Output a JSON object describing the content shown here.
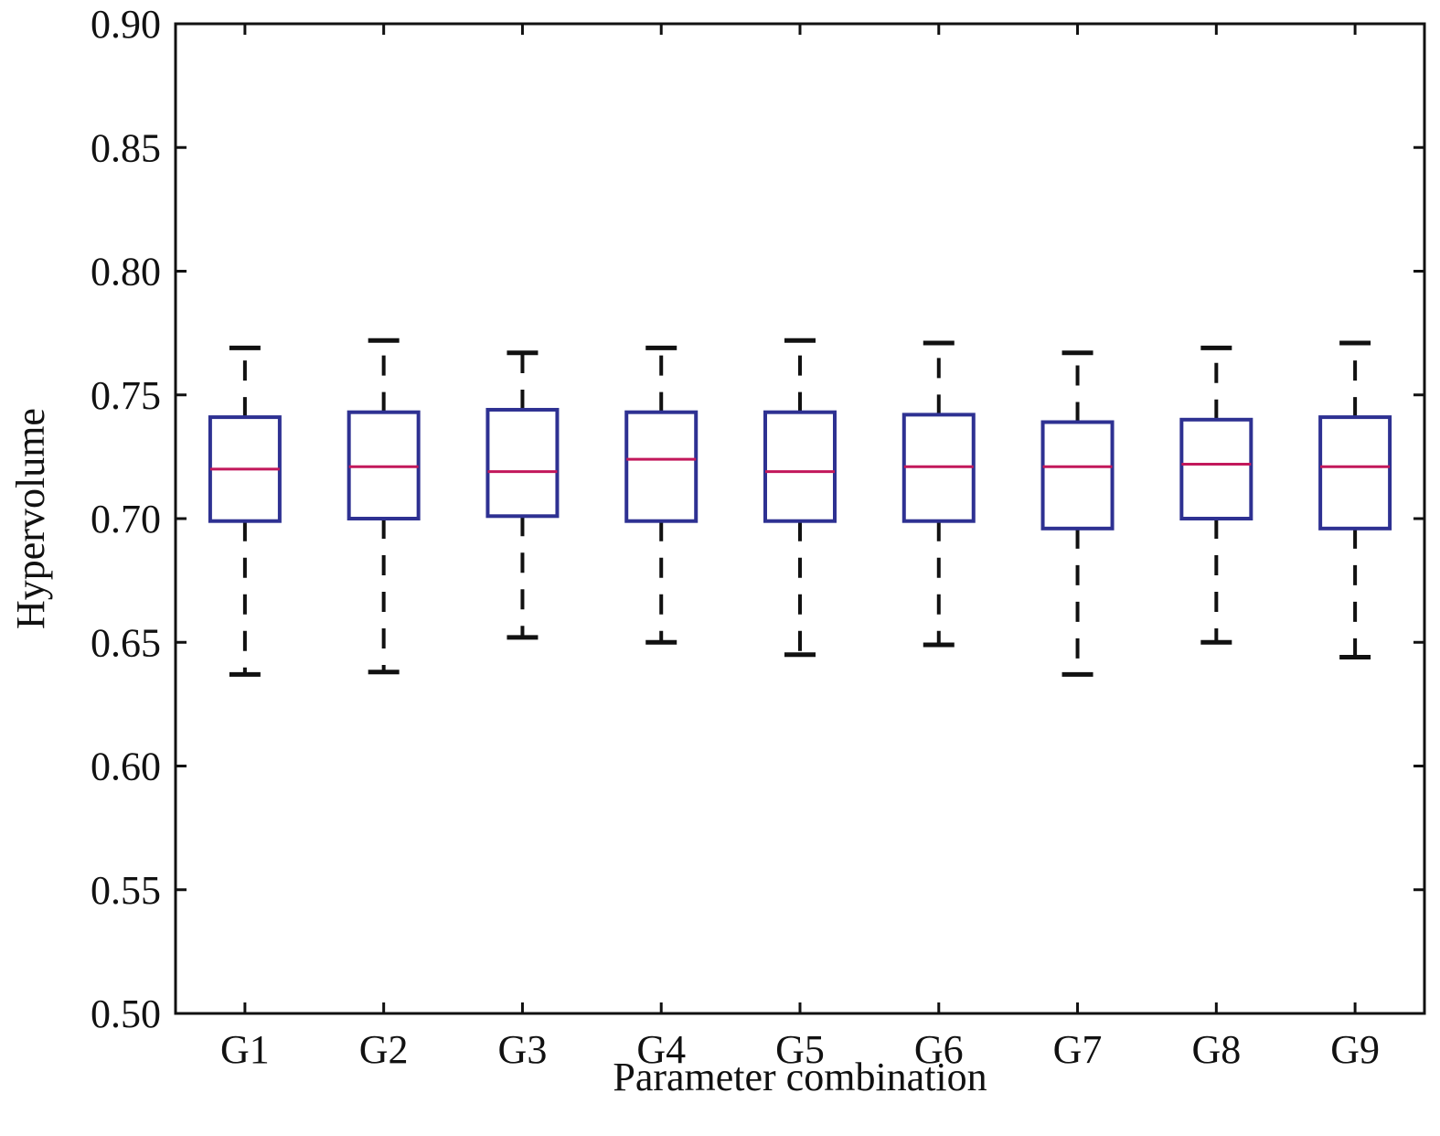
{
  "chart_data": {
    "type": "boxplot",
    "xlabel": "Parameter combination",
    "ylabel": "Hypervolume",
    "ylim": [
      0.5,
      0.9
    ],
    "yticks": [
      "0.50",
      "0.55",
      "0.60",
      "0.65",
      "0.70",
      "0.75",
      "0.80",
      "0.85",
      "0.90"
    ],
    "categories": [
      "G1",
      "G2",
      "G3",
      "G4",
      "G5",
      "G6",
      "G7",
      "G8",
      "G9"
    ],
    "boxes": [
      {
        "name": "G1",
        "whisker_low": 0.637,
        "q1": 0.699,
        "median": 0.72,
        "q3": 0.741,
        "whisker_high": 0.769
      },
      {
        "name": "G2",
        "whisker_low": 0.638,
        "q1": 0.7,
        "median": 0.721,
        "q3": 0.743,
        "whisker_high": 0.772
      },
      {
        "name": "G3",
        "whisker_low": 0.652,
        "q1": 0.701,
        "median": 0.719,
        "q3": 0.744,
        "whisker_high": 0.767
      },
      {
        "name": "G4",
        "whisker_low": 0.65,
        "q1": 0.699,
        "median": 0.724,
        "q3": 0.743,
        "whisker_high": 0.769
      },
      {
        "name": "G5",
        "whisker_low": 0.645,
        "q1": 0.699,
        "median": 0.719,
        "q3": 0.743,
        "whisker_high": 0.772
      },
      {
        "name": "G6",
        "whisker_low": 0.649,
        "q1": 0.699,
        "median": 0.721,
        "q3": 0.742,
        "whisker_high": 0.771
      },
      {
        "name": "G7",
        "whisker_low": 0.637,
        "q1": 0.696,
        "median": 0.721,
        "q3": 0.739,
        "whisker_high": 0.767
      },
      {
        "name": "G8",
        "whisker_low": 0.65,
        "q1": 0.7,
        "median": 0.722,
        "q3": 0.74,
        "whisker_high": 0.769
      },
      {
        "name": "G9",
        "whisker_low": 0.644,
        "q1": 0.696,
        "median": 0.721,
        "q3": 0.741,
        "whisker_high": 0.771
      }
    ],
    "grid": false,
    "colors": {
      "box": "#2e3192",
      "median": "#c2185b",
      "whisker": "#111111",
      "axis": "#111111"
    }
  }
}
